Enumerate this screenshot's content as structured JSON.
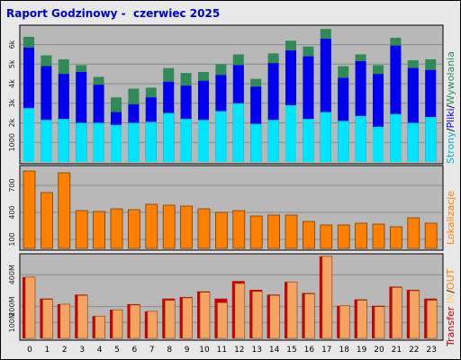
{
  "title": "Raport Godzinowy -  czerwiec 2025",
  "colors": {
    "wizyty": "#2e8b57",
    "strony": "#0000ee",
    "pliki": "#00e5ff",
    "lokalizacje": "#ff8000",
    "transfer": "#cc0000",
    "in": "#f4a460",
    "out": "#ffb347",
    "panel_bg": "#b8b8b8",
    "slash": "#000000"
  },
  "legend": {
    "panel1": [
      {
        "text": "Strony",
        "color": "#00b0d0"
      },
      {
        "text": "/",
        "color": "#000000"
      },
      {
        "text": "Pliki",
        "color": "#0000ee"
      },
      {
        "text": "/",
        "color": "#000000"
      },
      {
        "text": "Wywołania",
        "color": "#2e8b57"
      }
    ],
    "panel2": [
      {
        "text": "Lokalizacje",
        "color": "#ff8000"
      }
    ],
    "panel3": [
      {
        "text": "Transfer",
        "color": "#cc0000"
      },
      {
        "text": " IN",
        "color": "#ffcc66"
      },
      {
        "text": "/",
        "color": "#000000"
      },
      {
        "text": "OUT",
        "color": "#ff8000"
      }
    ]
  },
  "chart_data": [
    {
      "type": "bar",
      "panel": "strony-pliki-wywolania",
      "categories": [
        "0",
        "1",
        "2",
        "3",
        "4",
        "5",
        "6",
        "7",
        "8",
        "9",
        "10",
        "11",
        "12",
        "13",
        "14",
        "15",
        "16",
        "17",
        "18",
        "19",
        "20",
        "21",
        "22",
        "23"
      ],
      "y_tick_labels": [
        "1000",
        "2k",
        "3k",
        "4k",
        "5k",
        "6k"
      ],
      "y_ticks": [
        1000,
        2000,
        3000,
        4000,
        5000,
        6000
      ],
      "ylim": [
        0,
        6900
      ],
      "series": [
        {
          "name": "Wywołania",
          "values": [
            6400,
            5450,
            5250,
            4950,
            4350,
            3300,
            3750,
            3800,
            4800,
            4550,
            4600,
            5000,
            5500,
            4250,
            5550,
            6200,
            5900,
            6800,
            4900,
            5500,
            4950,
            6350,
            5200,
            5250
          ]
        },
        {
          "name": "Pliki",
          "values": [
            5850,
            4900,
            4500,
            4600,
            3950,
            2550,
            2950,
            3300,
            4100,
            3900,
            4150,
            4450,
            4950,
            3850,
            5050,
            5700,
            5400,
            6300,
            4300,
            5150,
            4500,
            5950,
            4800,
            4700
          ]
        },
        {
          "name": "Strony",
          "values": [
            2750,
            2150,
            2200,
            2000,
            2000,
            1900,
            2000,
            2050,
            2500,
            2200,
            2150,
            2600,
            3000,
            1950,
            2150,
            2900,
            2200,
            2550,
            2100,
            2350,
            1800,
            2450,
            2000,
            2300
          ]
        }
      ]
    },
    {
      "type": "bar",
      "panel": "lokalizacje",
      "categories": [
        "0",
        "1",
        "2",
        "3",
        "4",
        "5",
        "6",
        "7",
        "8",
        "9",
        "10",
        "11",
        "12",
        "13",
        "14",
        "15",
        "16",
        "17",
        "18",
        "19",
        "20",
        "21",
        "22",
        "23"
      ],
      "y_tick_labels": [
        "100",
        "400",
        "700"
      ],
      "y_ticks": [
        100,
        400,
        700
      ],
      "ylim": [
        0,
        900
      ],
      "series": [
        {
          "name": "Lokalizacje",
          "values": [
            860,
            620,
            840,
            420,
            410,
            440,
            430,
            490,
            480,
            470,
            440,
            400,
            420,
            360,
            370,
            370,
            300,
            260,
            260,
            280,
            270,
            240,
            340,
            280
          ]
        }
      ]
    },
    {
      "type": "bar",
      "panel": "transfer",
      "categories": [
        "0",
        "1",
        "2",
        "3",
        "4",
        "5",
        "6",
        "7",
        "8",
        "9",
        "10",
        "11",
        "12",
        "13",
        "14",
        "15",
        "16",
        "17",
        "18",
        "19",
        "20",
        "21",
        "22",
        "23"
      ],
      "y_tick_labels": [
        "100M",
        "200M",
        "400M"
      ],
      "y_ticks": [
        100,
        200,
        400
      ],
      "ylim": [
        0,
        520
      ],
      "series": [
        {
          "name": "Transfer",
          "values": [
            385,
            250,
            215,
            275,
            140,
            180,
            215,
            170,
            250,
            260,
            295,
            250,
            360,
            305,
            275,
            355,
            285,
            515,
            205,
            245,
            205,
            325,
            305,
            250
          ]
        },
        {
          "name": "OUT",
          "values": [
            385,
            245,
            215,
            270,
            140,
            180,
            210,
            170,
            240,
            255,
            290,
            225,
            345,
            295,
            270,
            355,
            280,
            515,
            205,
            240,
            200,
            320,
            300,
            240
          ]
        }
      ]
    }
  ],
  "x_labels": [
    "0",
    "1",
    "2",
    "3",
    "4",
    "5",
    "6",
    "7",
    "8",
    "9",
    "10",
    "11",
    "12",
    "13",
    "14",
    "15",
    "16",
    "17",
    "18",
    "19",
    "20",
    "21",
    "22",
    "23"
  ]
}
